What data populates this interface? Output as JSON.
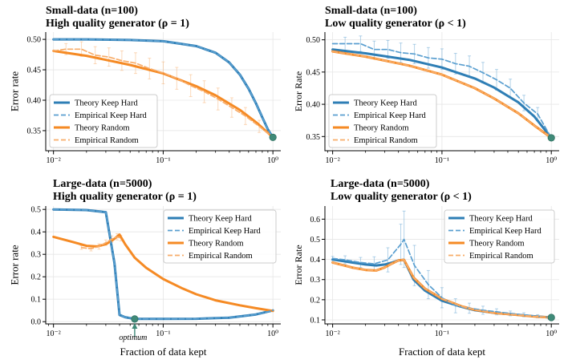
{
  "colors": {
    "keep_hard": "#2e7eb5",
    "random": "#f58a24",
    "keep_hard_emp": "#5a9fd0",
    "random_emp": "#f8ad6a",
    "endpoint": "#3f8a78",
    "grid": "#e6e6e6",
    "legend_border": "#cccccc"
  },
  "figure": {
    "xlabel": "Fraction of data kept",
    "x_ticks": [
      {
        "value": 0.01,
        "label": "10⁻²"
      },
      {
        "value": 0.1,
        "label": "10⁻¹"
      },
      {
        "value": 1,
        "label": "10⁰"
      }
    ]
  },
  "chart_data": [
    {
      "id": "p0",
      "type": "line",
      "title_line1": "Small-data (n=100)",
      "title_line2": "High quality generator (ρ = 1)",
      "xlabel": "",
      "ylabel": "Error rate",
      "xscale": "log",
      "xlim": [
        0.0085,
        1.18
      ],
      "ylim": [
        0.317,
        0.512
      ],
      "yticks": [
        0.35,
        0.4,
        0.45,
        0.5
      ],
      "ytick_labels": [
        "0.35",
        "0.40",
        "0.45",
        "0.50"
      ],
      "legend_position": "bottom-left",
      "legend": [
        "Theory Keep Hard",
        "Empirical Keep Hard",
        "Theory Random",
        "Empirical Random"
      ],
      "endpoint": {
        "x": 1,
        "y": 0.339
      },
      "series": [
        {
          "name": "Theory Keep Hard",
          "style": "theory",
          "role": "keep_hard",
          "x": [
            0.01,
            0.02,
            0.05,
            0.1,
            0.2,
            0.3,
            0.4,
            0.5,
            0.6,
            0.7,
            0.8,
            0.9,
            1.0
          ],
          "y": [
            0.5,
            0.5,
            0.499,
            0.497,
            0.489,
            0.478,
            0.462,
            0.442,
            0.419,
            0.395,
            0.372,
            0.352,
            0.339
          ]
        },
        {
          "name": "Empirical Keep Hard",
          "style": "empirical",
          "role": "keep_hard",
          "x": [
            0.01,
            0.02,
            0.05,
            0.1,
            0.2,
            0.3,
            0.4,
            0.5,
            0.6,
            0.7,
            0.8,
            0.9,
            1.0
          ],
          "y": [
            0.5,
            0.5,
            0.499,
            0.497,
            0.489,
            0.478,
            0.462,
            0.442,
            0.419,
            0.395,
            0.372,
            0.352,
            0.339
          ]
        },
        {
          "name": "Theory Random",
          "style": "theory",
          "role": "random",
          "x": [
            0.01,
            0.02,
            0.05,
            0.1,
            0.2,
            0.3,
            0.5,
            0.7,
            1.0
          ],
          "y": [
            0.481,
            0.473,
            0.458,
            0.444,
            0.423,
            0.408,
            0.384,
            0.364,
            0.339
          ]
        },
        {
          "name": "Empirical Random",
          "style": "empirical",
          "role": "random",
          "x": [
            0.01,
            0.013,
            0.018,
            0.024,
            0.032,
            0.042,
            0.056,
            0.075,
            0.1,
            0.133,
            0.178,
            0.237,
            0.316,
            0.422,
            0.562,
            0.75,
            1.0
          ],
          "y": [
            0.481,
            0.484,
            0.484,
            0.474,
            0.471,
            0.465,
            0.461,
            0.452,
            0.445,
            0.436,
            0.424,
            0.414,
            0.402,
            0.388,
            0.374,
            0.357,
            0.339
          ],
          "err": [
            0,
            0.009,
            0.012,
            0.014,
            0.015,
            0.016,
            0.017,
            0.017,
            0.018,
            0.018,
            0.018,
            0.018,
            0.018,
            0.016,
            0.014,
            0.01,
            0
          ]
        }
      ]
    },
    {
      "id": "p1",
      "type": "line",
      "title_line1": "Small-data (n=100)",
      "title_line2": "Low quality generator (ρ < 1)",
      "xlabel": "",
      "ylabel": "Error Rate",
      "xscale": "log",
      "xlim": [
        0.0085,
        1.18
      ],
      "ylim": [
        0.328,
        0.512
      ],
      "yticks": [
        0.35,
        0.4,
        0.45,
        0.5
      ],
      "ytick_labels": [
        "0.35",
        "0.40",
        "0.45",
        "0.50"
      ],
      "legend_position": "bottom-left",
      "legend": [
        "Theory Keep Hard",
        "Empirical Keep Hard",
        "Theory Random",
        "Empirical Random"
      ],
      "endpoint": {
        "x": 1,
        "y": 0.348
      },
      "series": [
        {
          "name": "Theory Keep Hard",
          "style": "theory",
          "role": "keep_hard",
          "x": [
            0.01,
            0.02,
            0.05,
            0.1,
            0.2,
            0.3,
            0.5,
            0.7,
            1.0
          ],
          "y": [
            0.485,
            0.479,
            0.469,
            0.457,
            0.44,
            0.426,
            0.403,
            0.381,
            0.348
          ]
        },
        {
          "name": "Empirical Keep Hard",
          "style": "empirical",
          "role": "keep_hard",
          "x": [
            0.01,
            0.013,
            0.018,
            0.024,
            0.032,
            0.042,
            0.056,
            0.075,
            0.1,
            0.133,
            0.178,
            0.237,
            0.316,
            0.422,
            0.562,
            0.75,
            1.0
          ],
          "y": [
            0.494,
            0.494,
            0.494,
            0.485,
            0.485,
            0.48,
            0.478,
            0.472,
            0.47,
            0.463,
            0.459,
            0.449,
            0.438,
            0.425,
            0.402,
            0.385,
            0.348
          ],
          "err": [
            0,
            0.01,
            0.012,
            0.013,
            0.014,
            0.015,
            0.015,
            0.016,
            0.016,
            0.016,
            0.016,
            0.016,
            0.016,
            0.014,
            0.012,
            0.01,
            0
          ]
        },
        {
          "name": "Theory Random",
          "style": "theory",
          "role": "random",
          "x": [
            0.01,
            0.02,
            0.05,
            0.1,
            0.2,
            0.3,
            0.5,
            0.7,
            1.0
          ],
          "y": [
            0.482,
            0.474,
            0.46,
            0.446,
            0.425,
            0.409,
            0.386,
            0.367,
            0.348
          ]
        },
        {
          "name": "Empirical Random",
          "style": "empirical",
          "role": "random",
          "x": [
            0.01,
            0.02,
            0.05,
            0.1,
            0.2,
            0.3,
            0.5,
            0.7,
            1.0
          ],
          "y": [
            0.482,
            0.474,
            0.46,
            0.446,
            0.425,
            0.409,
            0.386,
            0.367,
            0.348
          ]
        }
      ]
    },
    {
      "id": "p2",
      "type": "line",
      "title_line1": "Large-data (n=5000)",
      "title_line2": "High quality generator (ρ = 1)",
      "xlabel": "Fraction of data kept",
      "ylabel": "Error rate",
      "xscale": "log",
      "xlim": [
        0.0085,
        1.18
      ],
      "ylim": [
        -0.01,
        0.515
      ],
      "yticks": [
        0.0,
        0.1,
        0.2,
        0.3,
        0.4,
        0.5
      ],
      "ytick_labels": [
        "0.0",
        "0.1",
        "0.2",
        "0.3",
        "0.4",
        "0.5"
      ],
      "legend_position": "top-right",
      "legend": [
        "Theory Keep Hard",
        "Empirical Keep Hard",
        "Theory Random",
        "Empirical Random"
      ],
      "endpoint": {
        "x": 0.055,
        "y": 0.012
      },
      "annotation": {
        "text": "optimum",
        "x": 0.055
      },
      "series": [
        {
          "name": "Theory Keep Hard",
          "style": "theory",
          "role": "keep_hard",
          "x": [
            0.01,
            0.02,
            0.03,
            0.036,
            0.04,
            0.045,
            0.055,
            0.07,
            0.1,
            0.2,
            0.4,
            0.7,
            1.0
          ],
          "y": [
            0.5,
            0.497,
            0.488,
            0.26,
            0.03,
            0.02,
            0.012,
            0.012,
            0.012,
            0.013,
            0.018,
            0.032,
            0.05
          ]
        },
        {
          "name": "Empirical Keep Hard",
          "style": "empirical",
          "role": "keep_hard",
          "x": [
            0.01,
            0.02,
            0.03,
            0.036,
            0.04,
            0.045,
            0.055,
            0.07,
            0.1,
            0.2,
            0.4,
            0.7,
            1.0
          ],
          "y": [
            0.5,
            0.497,
            0.488,
            0.26,
            0.03,
            0.02,
            0.012,
            0.012,
            0.012,
            0.013,
            0.018,
            0.032,
            0.05
          ]
        },
        {
          "name": "Theory Random",
          "style": "theory",
          "role": "random",
          "x": [
            0.01,
            0.015,
            0.02,
            0.025,
            0.03,
            0.035,
            0.04,
            0.045,
            0.055,
            0.07,
            0.1,
            0.15,
            0.2,
            0.3,
            0.5,
            0.7,
            1.0
          ],
          "y": [
            0.378,
            0.355,
            0.338,
            0.335,
            0.345,
            0.365,
            0.388,
            0.345,
            0.285,
            0.24,
            0.19,
            0.148,
            0.122,
            0.095,
            0.073,
            0.06,
            0.048
          ]
        },
        {
          "name": "Empirical Random",
          "style": "empirical",
          "role": "random",
          "x": [
            0.018,
            0.022,
            0.026,
            0.03,
            0.034,
            0.038,
            0.041
          ],
          "y": [
            0.33,
            0.325,
            0.335,
            0.352,
            0.368,
            0.378,
            0.372
          ],
          "err": [
            0.008,
            0.01,
            0.012,
            0.012,
            0.014,
            0.014,
            0.012
          ]
        }
      ]
    },
    {
      "id": "p3",
      "type": "line",
      "title_line1": "Large-data (n=5000)",
      "title_line2": "Low quality generator (ρ < 1)",
      "xlabel": "Fraction of data kept",
      "ylabel": "Error Rate",
      "xscale": "log",
      "xlim": [
        0.0085,
        1.18
      ],
      "ylim": [
        0.08,
        0.665
      ],
      "yticks": [
        0.1,
        0.2,
        0.3,
        0.4,
        0.5,
        0.6
      ],
      "ytick_labels": [
        "0.1",
        "0.2",
        "0.3",
        "0.4",
        "0.5",
        "0.6"
      ],
      "legend_position": "top-right",
      "legend": [
        "Theory Keep Hard",
        "Empirical Keep Hard",
        "Theory Random",
        "Empirical Random"
      ],
      "endpoint": {
        "x": 1,
        "y": 0.112
      },
      "series": [
        {
          "name": "Theory Keep Hard",
          "style": "theory",
          "role": "keep_hard",
          "x": [
            0.01,
            0.015,
            0.02,
            0.025,
            0.03,
            0.035,
            0.04,
            0.045,
            0.055,
            0.07,
            0.1,
            0.15,
            0.2,
            0.3,
            0.5,
            0.7,
            1.0
          ],
          "y": [
            0.4,
            0.385,
            0.375,
            0.37,
            0.375,
            0.385,
            0.395,
            0.398,
            0.3,
            0.245,
            0.195,
            0.165,
            0.148,
            0.135,
            0.125,
            0.118,
            0.112
          ]
        },
        {
          "name": "Empirical Keep Hard",
          "style": "empirical",
          "role": "keep_hard",
          "x": [
            0.01,
            0.013,
            0.018,
            0.024,
            0.032,
            0.042,
            0.045,
            0.056,
            0.075,
            0.1,
            0.133,
            0.178,
            0.237,
            0.316,
            0.422,
            0.562,
            0.75,
            1.0
          ],
          "y": [
            0.405,
            0.398,
            0.385,
            0.378,
            0.398,
            0.475,
            0.5,
            0.37,
            0.275,
            0.21,
            0.17,
            0.158,
            0.148,
            0.14,
            0.132,
            0.125,
            0.118,
            0.112
          ],
          "err": [
            0.01,
            0.02,
            0.025,
            0.035,
            0.06,
            0.1,
            0.14,
            0.1,
            0.07,
            0.05,
            0.035,
            0.025,
            0.02,
            0.015,
            0.012,
            0.01,
            0.008,
            0
          ]
        },
        {
          "name": "Theory Random",
          "style": "theory",
          "role": "random",
          "x": [
            0.01,
            0.015,
            0.02,
            0.025,
            0.03,
            0.035,
            0.04,
            0.045,
            0.055,
            0.07,
            0.1,
            0.15,
            0.2,
            0.3,
            0.5,
            0.7,
            1.0
          ],
          "y": [
            0.385,
            0.36,
            0.348,
            0.345,
            0.36,
            0.38,
            0.395,
            0.398,
            0.31,
            0.255,
            0.205,
            0.168,
            0.15,
            0.135,
            0.124,
            0.117,
            0.112
          ]
        },
        {
          "name": "Empirical Random",
          "style": "empirical",
          "role": "random",
          "x": [
            0.01,
            0.015,
            0.02,
            0.025,
            0.03,
            0.035,
            0.04,
            0.045,
            0.055,
            0.07,
            0.1,
            0.15,
            0.2,
            0.3,
            0.5,
            0.7,
            1.0
          ],
          "y": [
            0.385,
            0.36,
            0.348,
            0.345,
            0.36,
            0.38,
            0.395,
            0.398,
            0.31,
            0.255,
            0.205,
            0.168,
            0.15,
            0.135,
            0.124,
            0.117,
            0.112
          ]
        }
      ]
    }
  ]
}
